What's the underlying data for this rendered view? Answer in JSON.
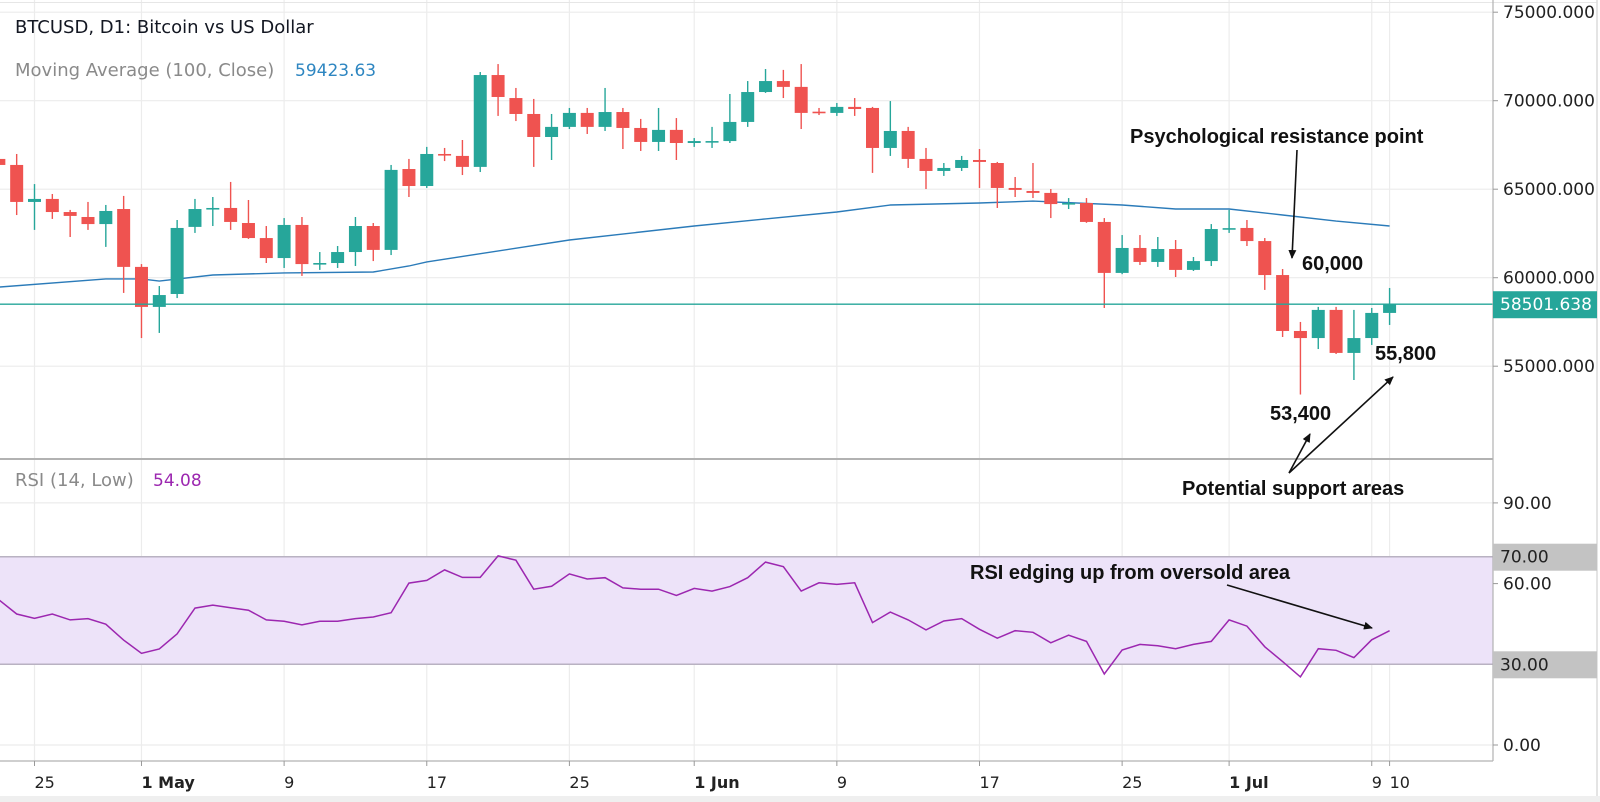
{
  "header": {
    "title": "BTCUSD, D1: Bitcoin vs US Dollar",
    "ma_label": "Moving Average (100, Close)",
    "ma_value": "59423.63",
    "rsi_label": "RSI (14, Low)",
    "rsi_value": "54.08"
  },
  "colors": {
    "up": "#26a69a",
    "down": "#ef5350",
    "ma_line": "#2b7bb9",
    "price_line": "#26a69a",
    "rsi_line": "#9c27b0",
    "rsi_band": "#ede3f9",
    "level_label_bg": "#c3c3c3",
    "grid": "#ececec"
  },
  "annotations": {
    "resistance": "Psychological resistance point",
    "level_60000": "60,000",
    "level_55800": "55,800",
    "level_53400": "53,400",
    "support": "Potential support areas",
    "rsi_note": "RSI edging up from oversold area"
  },
  "chart_data": [
    {
      "type": "candlestick",
      "title": "BTCUSD, D1: Bitcoin vs US Dollar",
      "ylim": [
        50500,
        75500
      ],
      "y_ticks": [
        "75000.000",
        "70000.000",
        "65000.000",
        "60000.000",
        "55000.000"
      ],
      "y_tick_values": [
        75000,
        70000,
        65000,
        60000,
        55000
      ],
      "last_price": 58501.638,
      "last_price_label": "58501.638",
      "x_ticks": [
        {
          "label": "25",
          "date": "Apr 25",
          "bold": false
        },
        {
          "label": "1 May",
          "date": "May 1",
          "bold": true
        },
        {
          "label": "9",
          "date": "May 9",
          "bold": false
        },
        {
          "label": "17",
          "date": "May 17",
          "bold": false
        },
        {
          "label": "25",
          "date": "May 25",
          "bold": false
        },
        {
          "label": "1 Jun",
          "date": "Jun 1",
          "bold": true
        },
        {
          "label": "9",
          "date": "Jun 9",
          "bold": false
        },
        {
          "label": "17",
          "date": "Jun 17",
          "bold": false
        },
        {
          "label": "25",
          "date": "Jun 25",
          "bold": false
        },
        {
          "label": "1 Jul",
          "date": "Jul 1",
          "bold": true
        },
        {
          "label": "9",
          "date": "Jul 9",
          "bold": false
        },
        {
          "label": "10",
          "date": "Jul 10",
          "bold": false
        }
      ],
      "candles_fields": [
        "date",
        "open",
        "high",
        "low",
        "close"
      ],
      "candles": [
        [
          "Apr 23",
          66710,
          66930,
          66310,
          66370
        ],
        [
          "Apr 24",
          66370,
          66990,
          63540,
          64280
        ],
        [
          "Apr 25",
          64280,
          65290,
          62700,
          64450
        ],
        [
          "Apr 26",
          64450,
          64730,
          63320,
          63710
        ],
        [
          "Apr 27",
          63710,
          63830,
          62300,
          63490
        ],
        [
          "Apr 28",
          63430,
          64280,
          62700,
          63030
        ],
        [
          "Apr 29",
          63030,
          64110,
          61740,
          63770
        ],
        [
          "Apr 30",
          63880,
          64620,
          59140,
          60610
        ],
        [
          "May 1",
          60610,
          60770,
          56590,
          58350
        ],
        [
          "May 2",
          58350,
          59530,
          56880,
          59020
        ],
        [
          "May 3",
          59080,
          63260,
          58850,
          62810
        ],
        [
          "May 4",
          62870,
          64450,
          62530,
          63880
        ],
        [
          "May 5",
          63880,
          64560,
          62920,
          63940
        ],
        [
          "May 6",
          63940,
          65410,
          62700,
          63150
        ],
        [
          "May 7",
          63090,
          64390,
          62190,
          62240
        ],
        [
          "May 8",
          62240,
          62920,
          60830,
          61110
        ],
        [
          "May 9",
          61110,
          63370,
          60550,
          62980
        ],
        [
          "May 10",
          62980,
          63430,
          60100,
          60770
        ],
        [
          "May 11",
          60770,
          61450,
          60440,
          60830
        ],
        [
          "May 12",
          60830,
          61790,
          60550,
          61450
        ],
        [
          "May 13",
          61450,
          63430,
          60660,
          62920
        ],
        [
          "May 14",
          62920,
          63090,
          60940,
          61570
        ],
        [
          "May 15",
          61570,
          66370,
          61280,
          66090
        ],
        [
          "May 16",
          66140,
          66710,
          64560,
          65180
        ],
        [
          "May 17",
          65180,
          67390,
          65070,
          66990
        ],
        [
          "May 18",
          66990,
          67330,
          66590,
          66930
        ],
        [
          "May 19",
          66880,
          67780,
          65800,
          66260
        ],
        [
          "May 20",
          66260,
          71620,
          65970,
          71450
        ],
        [
          "May 21",
          71450,
          72070,
          69140,
          70210
        ],
        [
          "May 22",
          70150,
          70720,
          68850,
          69250
        ],
        [
          "May 23",
          69250,
          70100,
          66260,
          67950
        ],
        [
          "May 24",
          67950,
          69250,
          66650,
          68520
        ],
        [
          "May 25",
          68520,
          69590,
          68400,
          69310
        ],
        [
          "May 26",
          69310,
          69590,
          68120,
          68520
        ],
        [
          "May 27",
          68520,
          70720,
          68290,
          69360
        ],
        [
          "May 28",
          69360,
          69590,
          67270,
          68460
        ],
        [
          "May 29",
          68460,
          68970,
          67160,
          67670
        ],
        [
          "May 30",
          67670,
          69590,
          67160,
          68350
        ],
        [
          "May 31",
          68350,
          69020,
          66650,
          67610
        ],
        [
          "Jun 1",
          67610,
          67890,
          67390,
          67720
        ],
        [
          "Jun 2",
          67670,
          68520,
          67330,
          67720
        ],
        [
          "Jun 3",
          67720,
          70380,
          67610,
          68800
        ],
        [
          "Jun 4",
          68800,
          71110,
          68520,
          70490
        ],
        [
          "Jun 5",
          70490,
          71790,
          70440,
          71110
        ],
        [
          "Jun 6",
          71110,
          71740,
          70150,
          70780
        ],
        [
          "Jun 7",
          70780,
          72070,
          68400,
          69310
        ],
        [
          "Jun 8",
          69380,
          69590,
          69190,
          69310
        ],
        [
          "Jun 9",
          69310,
          69870,
          69140,
          69650
        ],
        [
          "Jun 10",
          69650,
          70150,
          69140,
          69530
        ],
        [
          "Jun 11",
          69590,
          69650,
          65920,
          67330
        ],
        [
          "Jun 12",
          67330,
          69980,
          66880,
          68290
        ],
        [
          "Jun 13",
          68290,
          68520,
          66200,
          66710
        ],
        [
          "Jun 14",
          66710,
          67330,
          65010,
          66030
        ],
        [
          "Jun 15",
          66030,
          66480,
          65750,
          66200
        ],
        [
          "Jun 16",
          66200,
          66880,
          66030,
          66650
        ],
        [
          "Jun 17",
          66650,
          67270,
          65070,
          66540
        ],
        [
          "Jun 18",
          66480,
          66540,
          63940,
          65070
        ],
        [
          "Jun 19",
          65070,
          65690,
          64560,
          64960
        ],
        [
          "Jun 20",
          64900,
          66480,
          64500,
          64790
        ],
        [
          "Jun 21",
          64790,
          65010,
          63370,
          64160
        ],
        [
          "Jun 22",
          64160,
          64500,
          63880,
          64220
        ],
        [
          "Jun 23",
          64220,
          64500,
          63100,
          63150
        ],
        [
          "Jun 24",
          63150,
          63370,
          58290,
          60270
        ],
        [
          "Jun 25",
          60270,
          62410,
          60200,
          61680
        ],
        [
          "Jun 26",
          61680,
          62410,
          60720,
          60890
        ],
        [
          "Jun 27",
          60890,
          62300,
          60610,
          61620
        ],
        [
          "Jun 28",
          61620,
          62130,
          60040,
          60440
        ],
        [
          "Jun 29",
          60440,
          61170,
          60380,
          60940
        ],
        [
          "Jun 30",
          60940,
          63030,
          60660,
          62750
        ],
        [
          "Jul 1",
          62750,
          63830,
          62530,
          62800
        ],
        [
          "Jul 2",
          62810,
          63260,
          61790,
          62070
        ],
        [
          "Jul 3",
          62070,
          62240,
          59310,
          60150
        ],
        [
          "Jul 4",
          60150,
          60490,
          56650,
          56990
        ],
        [
          "Jul 5",
          56990,
          57500,
          53400,
          56590
        ],
        [
          "Jul 6",
          56590,
          58350,
          55970,
          58180
        ],
        [
          "Jul 7",
          58180,
          58350,
          55690,
          55750
        ],
        [
          "Jul 8",
          55750,
          58180,
          54220,
          56590
        ],
        [
          "Jul 9",
          56590,
          58290,
          56200,
          58010
        ],
        [
          "Jul 10",
          58010,
          59420,
          57330,
          58501.64
        ]
      ],
      "moving_average_100": [
        [
          "Apr 23",
          59470
        ],
        [
          "Apr 29",
          59930
        ],
        [
          "May 1",
          59930
        ],
        [
          "May 2",
          59810
        ],
        [
          "May 5",
          60150
        ],
        [
          "May 9",
          60270
        ],
        [
          "May 14",
          60320
        ],
        [
          "May 16",
          60660
        ],
        [
          "May 17",
          60890
        ],
        [
          "May 25",
          62130
        ],
        [
          "Jun 1",
          62920
        ],
        [
          "Jun 5",
          63320
        ],
        [
          "Jun 9",
          63710
        ],
        [
          "Jun 12",
          64110
        ],
        [
          "Jun 17",
          64220
        ],
        [
          "Jun 20",
          64330
        ],
        [
          "Jun 25",
          64110
        ],
        [
          "Jun 28",
          63880
        ],
        [
          "Jul 1",
          63880
        ],
        [
          "Jul 4",
          63540
        ],
        [
          "Jul 7",
          63200
        ],
        [
          "Jul 10",
          62920
        ]
      ]
    },
    {
      "type": "line",
      "title": "RSI (14, Low)",
      "ylim": [
        -5,
        97
      ],
      "y_ticks": [
        "90.00",
        "60.00",
        "0.00"
      ],
      "y_tick_values": [
        90,
        60,
        0
      ],
      "band": {
        "upper": 70,
        "lower": 30,
        "upper_label": "70.00",
        "lower_label": "30.00"
      },
      "values": [
        54.0,
        48.7,
        47.1,
        48.7,
        46.5,
        47.0,
        44.9,
        39.0,
        34.1,
        35.7,
        41.3,
        50.9,
        52.0,
        51.0,
        50.1,
        46.5,
        46.0,
        44.7,
        46.0,
        46.0,
        47.0,
        47.6,
        49.2,
        60.2,
        61.2,
        65.1,
        62.3,
        62.3,
        70.3,
        68.7,
        57.9,
        59.0,
        63.6,
        61.7,
        62.2,
        58.4,
        57.9,
        57.9,
        55.6,
        58.2,
        57.2,
        58.9,
        62.2,
        68.0,
        66.3,
        57.2,
        60.3,
        59.7,
        60.3,
        45.5,
        49.4,
        46.5,
        42.8,
        46.1,
        47.0,
        43.0,
        39.7,
        42.5,
        41.9,
        38.0,
        40.8,
        38.5,
        26.4,
        35.3,
        37.4,
        36.9,
        35.8,
        37.4,
        38.5,
        46.5,
        44.2,
        36.5,
        31.0,
        25.3,
        35.8,
        35.2,
        32.5,
        39.1,
        42.5
      ]
    }
  ]
}
